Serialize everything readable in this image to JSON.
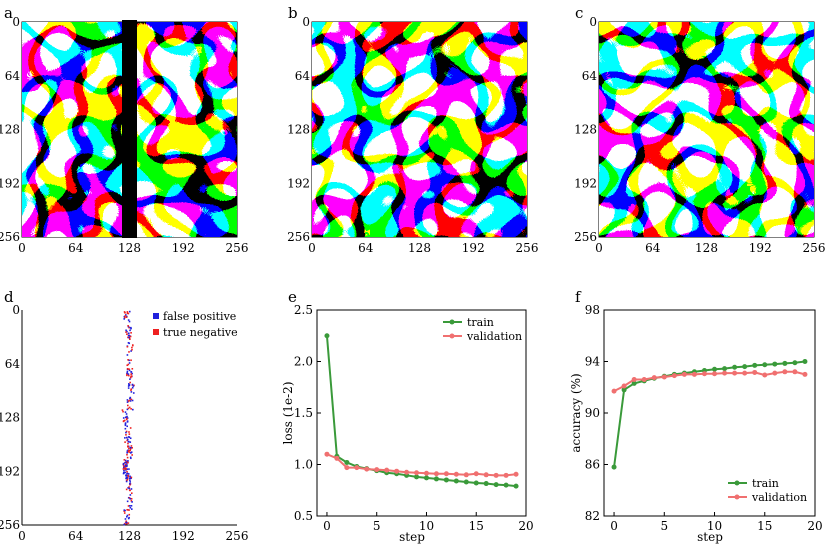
{
  "panels": {
    "a": "a",
    "b": "b",
    "c": "c",
    "d": "d",
    "e": "e",
    "f": "f"
  },
  "image_ticks": [
    "0",
    "64",
    "128",
    "192",
    "256"
  ],
  "colors": {
    "train": "#3a9a3a",
    "validation": "#f07070",
    "false_positive": "#2020dd",
    "true_negative": "#ee2020"
  },
  "chart_data": [
    {
      "type": "heatmap",
      "panel": "d",
      "title": "",
      "xlim": [
        0,
        256
      ],
      "ylim": [
        0,
        256
      ],
      "xticks": [
        "0",
        "64",
        "128",
        "192",
        "256"
      ],
      "yticks": [
        "0",
        "64",
        "128",
        "192",
        "256"
      ],
      "legend": [
        "false positive",
        "true negative"
      ],
      "legend_position": "top-right",
      "error_band_x_center": [
        124,
        126,
        128,
        127,
        129,
        128,
        122,
        125,
        127,
        123,
        126,
        128,
        124
      ]
    },
    {
      "type": "line",
      "panel": "e",
      "xlabel": "step",
      "ylabel": "loss (1e-2)",
      "xlim": [
        -1,
        20
      ],
      "ylim": [
        0.5,
        2.5
      ],
      "xticks": [
        "0",
        "5",
        "10",
        "15",
        "20"
      ],
      "yticks": [
        "0.5",
        "1.0",
        "1.5",
        "2.0",
        "2.5"
      ],
      "x": [
        0,
        1,
        2,
        3,
        4,
        5,
        6,
        7,
        8,
        9,
        10,
        11,
        12,
        13,
        14,
        15,
        16,
        17,
        18,
        19
      ],
      "series": [
        {
          "name": "train",
          "values": [
            2.25,
            1.08,
            1.02,
            0.98,
            0.96,
            0.94,
            0.92,
            0.91,
            0.895,
            0.88,
            0.87,
            0.86,
            0.85,
            0.84,
            0.83,
            0.82,
            0.815,
            0.805,
            0.8,
            0.79
          ]
        },
        {
          "name": "validation",
          "values": [
            1.1,
            1.06,
            0.97,
            0.97,
            0.955,
            0.95,
            0.945,
            0.935,
            0.925,
            0.92,
            0.915,
            0.91,
            0.91,
            0.905,
            0.9,
            0.91,
            0.9,
            0.895,
            0.895,
            0.905
          ]
        }
      ],
      "legend_position": "top-right"
    },
    {
      "type": "line",
      "panel": "f",
      "xlabel": "step",
      "ylabel": "accuracy (%)",
      "xlim": [
        -1,
        20
      ],
      "ylim": [
        82,
        98
      ],
      "xticks": [
        "0",
        "5",
        "10",
        "15",
        "20"
      ],
      "yticks": [
        "82",
        "86",
        "90",
        "94",
        "98"
      ],
      "x": [
        0,
        1,
        2,
        3,
        4,
        5,
        6,
        7,
        8,
        9,
        10,
        11,
        12,
        13,
        14,
        15,
        16,
        17,
        18,
        19
      ],
      "series": [
        {
          "name": "train",
          "values": [
            85.8,
            91.8,
            92.3,
            92.5,
            92.7,
            92.85,
            93.0,
            93.1,
            93.2,
            93.3,
            93.4,
            93.45,
            93.55,
            93.6,
            93.7,
            93.75,
            93.8,
            93.85,
            93.9,
            94.0
          ]
        },
        {
          "name": "validation",
          "values": [
            91.7,
            92.1,
            92.6,
            92.6,
            92.75,
            92.8,
            92.9,
            93.0,
            93.0,
            93.05,
            93.05,
            93.1,
            93.1,
            93.1,
            93.15,
            92.95,
            93.1,
            93.2,
            93.2,
            93.0
          ]
        }
      ],
      "legend_position": "bottom-right"
    }
  ]
}
